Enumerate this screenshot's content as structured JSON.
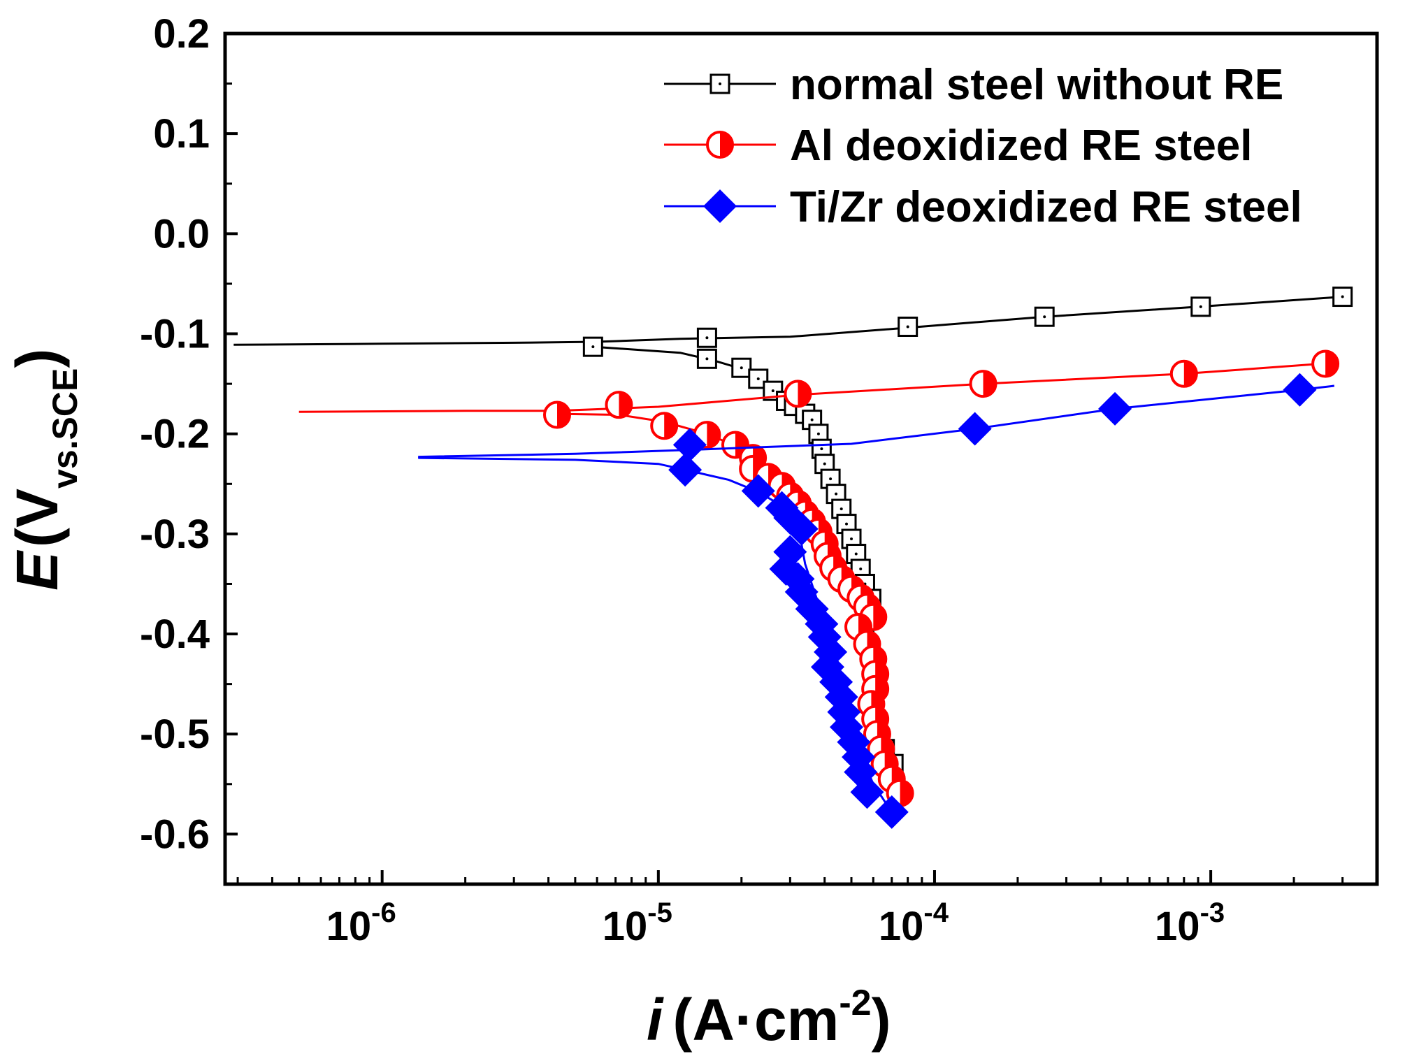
{
  "chart_data": {
    "type": "line",
    "title": "",
    "xlabel": {
      "italic": "i",
      "main": "(A·cm",
      "sup": "-2",
      "close": ")"
    },
    "ylabel": {
      "italic": "E",
      "open": "(V",
      "sub": "vs.SCE",
      "close": ")"
    },
    "x_scale": "log",
    "xlim": [
      2.7e-07,
      0.004
    ],
    "ylim": [
      -0.65,
      0.2
    ],
    "x_ticks": [
      {
        "base": "10",
        "exp": "-6",
        "value": 1e-06
      },
      {
        "base": "10",
        "exp": "-5",
        "value": 1e-05
      },
      {
        "base": "10",
        "exp": "-4",
        "value": 0.0001
      },
      {
        "base": "10",
        "exp": "-3",
        "value": 0.001
      }
    ],
    "y_ticks": [
      {
        "label": "0.2",
        "value": 0.2
      },
      {
        "label": "0.1",
        "value": 0.1
      },
      {
        "label": "0.0",
        "value": 0.0
      },
      {
        "label": "-0.1",
        "value": -0.1
      },
      {
        "label": "-0.2",
        "value": -0.2
      },
      {
        "label": "-0.3",
        "value": -0.3
      },
      {
        "label": "-0.4",
        "value": -0.4
      },
      {
        "label": "-0.5",
        "value": -0.5
      },
      {
        "label": "-0.6",
        "value": -0.6
      }
    ],
    "legend_position": "top-right",
    "series": [
      {
        "name": "normal steel without RE",
        "color": "#000000",
        "marker": "square-dot",
        "line": [
          [
            2.9e-07,
            -0.111
          ],
          [
            1e-06,
            -0.11
          ],
          [
            3e-06,
            -0.109
          ],
          [
            6e-06,
            -0.108
          ],
          [
            1.2e-05,
            -0.105
          ],
          [
            3e-05,
            -0.103
          ],
          [
            8e-05,
            -0.094
          ],
          [
            0.00025,
            -0.083
          ],
          [
            0.0009,
            -0.073
          ],
          [
            0.003,
            -0.063
          ]
        ],
        "cathodic_line": [
          [
            5.8e-06,
            -0.113
          ],
          [
            1.2e-05,
            -0.119
          ],
          [
            1.6e-05,
            -0.127
          ],
          [
            2e-05,
            -0.135
          ],
          [
            2.3e-05,
            -0.145
          ],
          [
            2.7e-05,
            -0.16
          ],
          [
            3.1e-05,
            -0.172
          ],
          [
            3.5e-05,
            -0.184
          ],
          [
            3.9e-05,
            -0.205
          ],
          [
            4.2e-05,
            -0.24
          ],
          [
            4.6e-05,
            -0.28
          ],
          [
            5e-05,
            -0.31
          ],
          [
            5.4e-05,
            -0.34
          ],
          [
            5.8e-05,
            -0.37
          ],
          [
            6.1e-05,
            -0.41
          ],
          [
            6.3e-05,
            -0.46
          ],
          [
            6.6e-05,
            -0.5
          ],
          [
            7e-05,
            -0.53
          ],
          [
            7.3e-05,
            -0.555
          ]
        ],
        "markers": [
          [
            5.8e-06,
            -0.113
          ],
          [
            1.5e-05,
            -0.104
          ],
          [
            1.5e-05,
            -0.125
          ],
          [
            2e-05,
            -0.134
          ],
          [
            2.3e-05,
            -0.145
          ],
          [
            2.6e-05,
            -0.157
          ],
          [
            2.9e-05,
            -0.167
          ],
          [
            3.1e-05,
            -0.172
          ],
          [
            3.4e-05,
            -0.18
          ],
          [
            3.6e-05,
            -0.186
          ],
          [
            3.8e-05,
            -0.2
          ],
          [
            3.9e-05,
            -0.215
          ],
          [
            4e-05,
            -0.23
          ],
          [
            4.2e-05,
            -0.245
          ],
          [
            4.4e-05,
            -0.26
          ],
          [
            4.6e-05,
            -0.275
          ],
          [
            4.8e-05,
            -0.29
          ],
          [
            5e-05,
            -0.305
          ],
          [
            5.2e-05,
            -0.32
          ],
          [
            5.4e-05,
            -0.335
          ],
          [
            5.6e-05,
            -0.35
          ],
          [
            5.9e-05,
            -0.365
          ],
          [
            6.2e-05,
            -0.5
          ],
          [
            6.6e-05,
            -0.515
          ],
          [
            7.1e-05,
            -0.53
          ],
          [
            8e-05,
            -0.093
          ],
          [
            0.00025,
            -0.083
          ],
          [
            0.00092,
            -0.073
          ],
          [
            0.003,
            -0.063
          ]
        ]
      },
      {
        "name": "Al deoxidized RE steel",
        "color": "#ff0000",
        "marker": "circle-half",
        "line": [
          [
            5e-07,
            -0.178
          ],
          [
            2e-06,
            -0.177
          ],
          [
            4.3e-06,
            -0.177
          ],
          [
            1e-05,
            -0.173
          ],
          [
            3.2e-05,
            -0.161
          ],
          [
            0.00015,
            -0.15
          ],
          [
            0.0008,
            -0.14
          ],
          [
            0.0028,
            -0.129
          ]
        ],
        "cathodic_line": [
          [
            4.3e-06,
            -0.18
          ],
          [
            7.2e-06,
            -0.181
          ],
          [
            1.05e-05,
            -0.188
          ],
          [
            1.5e-05,
            -0.2
          ],
          [
            1.9e-05,
            -0.212
          ],
          [
            2.2e-05,
            -0.225
          ],
          [
            2.6e-05,
            -0.245
          ],
          [
            3e-05,
            -0.262
          ],
          [
            3.5e-05,
            -0.283
          ],
          [
            4e-05,
            -0.31
          ],
          [
            4.4e-05,
            -0.34
          ],
          [
            5e-05,
            -0.365
          ],
          [
            5.7e-05,
            -0.385
          ],
          [
            6e-05,
            -0.43
          ],
          [
            6.1e-05,
            -0.47
          ],
          [
            6.3e-05,
            -0.51
          ],
          [
            6.8e-05,
            -0.54
          ],
          [
            7.5e-05,
            -0.56
          ]
        ],
        "markers": [
          [
            4.3e-06,
            -0.181
          ],
          [
            7.2e-06,
            -0.171
          ],
          [
            1.05e-05,
            -0.192
          ],
          [
            1.5e-05,
            -0.201
          ],
          [
            1.9e-05,
            -0.211
          ],
          [
            2.2e-05,
            -0.224
          ],
          [
            2.2e-05,
            -0.235
          ],
          [
            2.5e-05,
            -0.243
          ],
          [
            2.8e-05,
            -0.252
          ],
          [
            3e-05,
            -0.262
          ],
          [
            3.2e-05,
            -0.27
          ],
          [
            3.4e-05,
            -0.28
          ],
          [
            3.6e-05,
            -0.288
          ],
          [
            3.8e-05,
            -0.298
          ],
          [
            4e-05,
            -0.31
          ],
          [
            4.1e-05,
            -0.322
          ],
          [
            4.3e-05,
            -0.334
          ],
          [
            4.6e-05,
            -0.345
          ],
          [
            5e-05,
            -0.355
          ],
          [
            5.4e-05,
            -0.364
          ],
          [
            5.7e-05,
            -0.373
          ],
          [
            6e-05,
            -0.383
          ],
          [
            5.3e-05,
            -0.393
          ],
          [
            5.7e-05,
            -0.41
          ],
          [
            6e-05,
            -0.425
          ],
          [
            6.1e-05,
            -0.44
          ],
          [
            6.1e-05,
            -0.455
          ],
          [
            5.9e-05,
            -0.47
          ],
          [
            6.1e-05,
            -0.485
          ],
          [
            6.2e-05,
            -0.5
          ],
          [
            6.4e-05,
            -0.515
          ],
          [
            6.6e-05,
            -0.53
          ],
          [
            7e-05,
            -0.545
          ],
          [
            7.5e-05,
            -0.559
          ],
          [
            3.2e-05,
            -0.16
          ],
          [
            0.00015,
            -0.15
          ],
          [
            0.0008,
            -0.14
          ],
          [
            0.0026,
            -0.13
          ]
        ]
      },
      {
        "name": "Ti/Zr deoxidized RE steel",
        "color": "#0000ff",
        "marker": "diamond",
        "line": [
          [
            1.35e-06,
            -0.223
          ],
          [
            5e-06,
            -0.22
          ],
          [
            1.3e-05,
            -0.216
          ],
          [
            5e-05,
            -0.21
          ],
          [
            0.00014,
            -0.195
          ],
          [
            0.00045,
            -0.175
          ],
          [
            0.0021,
            -0.156
          ],
          [
            0.0028,
            -0.152
          ]
        ],
        "cathodic_line": [
          [
            1.35e-06,
            -0.224
          ],
          [
            5e-06,
            -0.226
          ],
          [
            1e-05,
            -0.23
          ],
          [
            1.3e-05,
            -0.237
          ],
          [
            1.8e-05,
            -0.246
          ],
          [
            2.3e-05,
            -0.258
          ],
          [
            2.8e-05,
            -0.272
          ],
          [
            3.2e-05,
            -0.29
          ],
          [
            3.4e-05,
            -0.33
          ],
          [
            3.8e-05,
            -0.37
          ],
          [
            4.2e-05,
            -0.41
          ],
          [
            4.6e-05,
            -0.45
          ],
          [
            5e-05,
            -0.49
          ],
          [
            5.4e-05,
            -0.52
          ],
          [
            6e-05,
            -0.55
          ],
          [
            7e-05,
            -0.578
          ]
        ],
        "markers": [
          [
            1.25e-05,
            -0.236
          ],
          [
            1.3e-05,
            -0.211
          ],
          [
            2.3e-05,
            -0.257
          ],
          [
            2.8e-05,
            -0.274
          ],
          [
            3e-05,
            -0.284
          ],
          [
            3.3e-05,
            -0.295
          ],
          [
            3e-05,
            -0.318
          ],
          [
            2.9e-05,
            -0.335
          ],
          [
            3.2e-05,
            -0.345
          ],
          [
            3.3e-05,
            -0.358
          ],
          [
            3.6e-05,
            -0.375
          ],
          [
            3.9e-05,
            -0.39
          ],
          [
            4e-05,
            -0.403
          ],
          [
            4.2e-05,
            -0.418
          ],
          [
            4.1e-05,
            -0.433
          ],
          [
            4.4e-05,
            -0.448
          ],
          [
            4.6e-05,
            -0.463
          ],
          [
            4.7e-05,
            -0.478
          ],
          [
            4.8e-05,
            -0.493
          ],
          [
            5.1e-05,
            -0.508
          ],
          [
            5.3e-05,
            -0.523
          ],
          [
            5.4e-05,
            -0.538
          ],
          [
            5.7e-05,
            -0.558
          ],
          [
            7e-05,
            -0.578
          ],
          [
            0.00014,
            -0.195
          ],
          [
            0.00045,
            -0.175
          ],
          [
            0.0021,
            -0.156
          ]
        ]
      }
    ]
  }
}
